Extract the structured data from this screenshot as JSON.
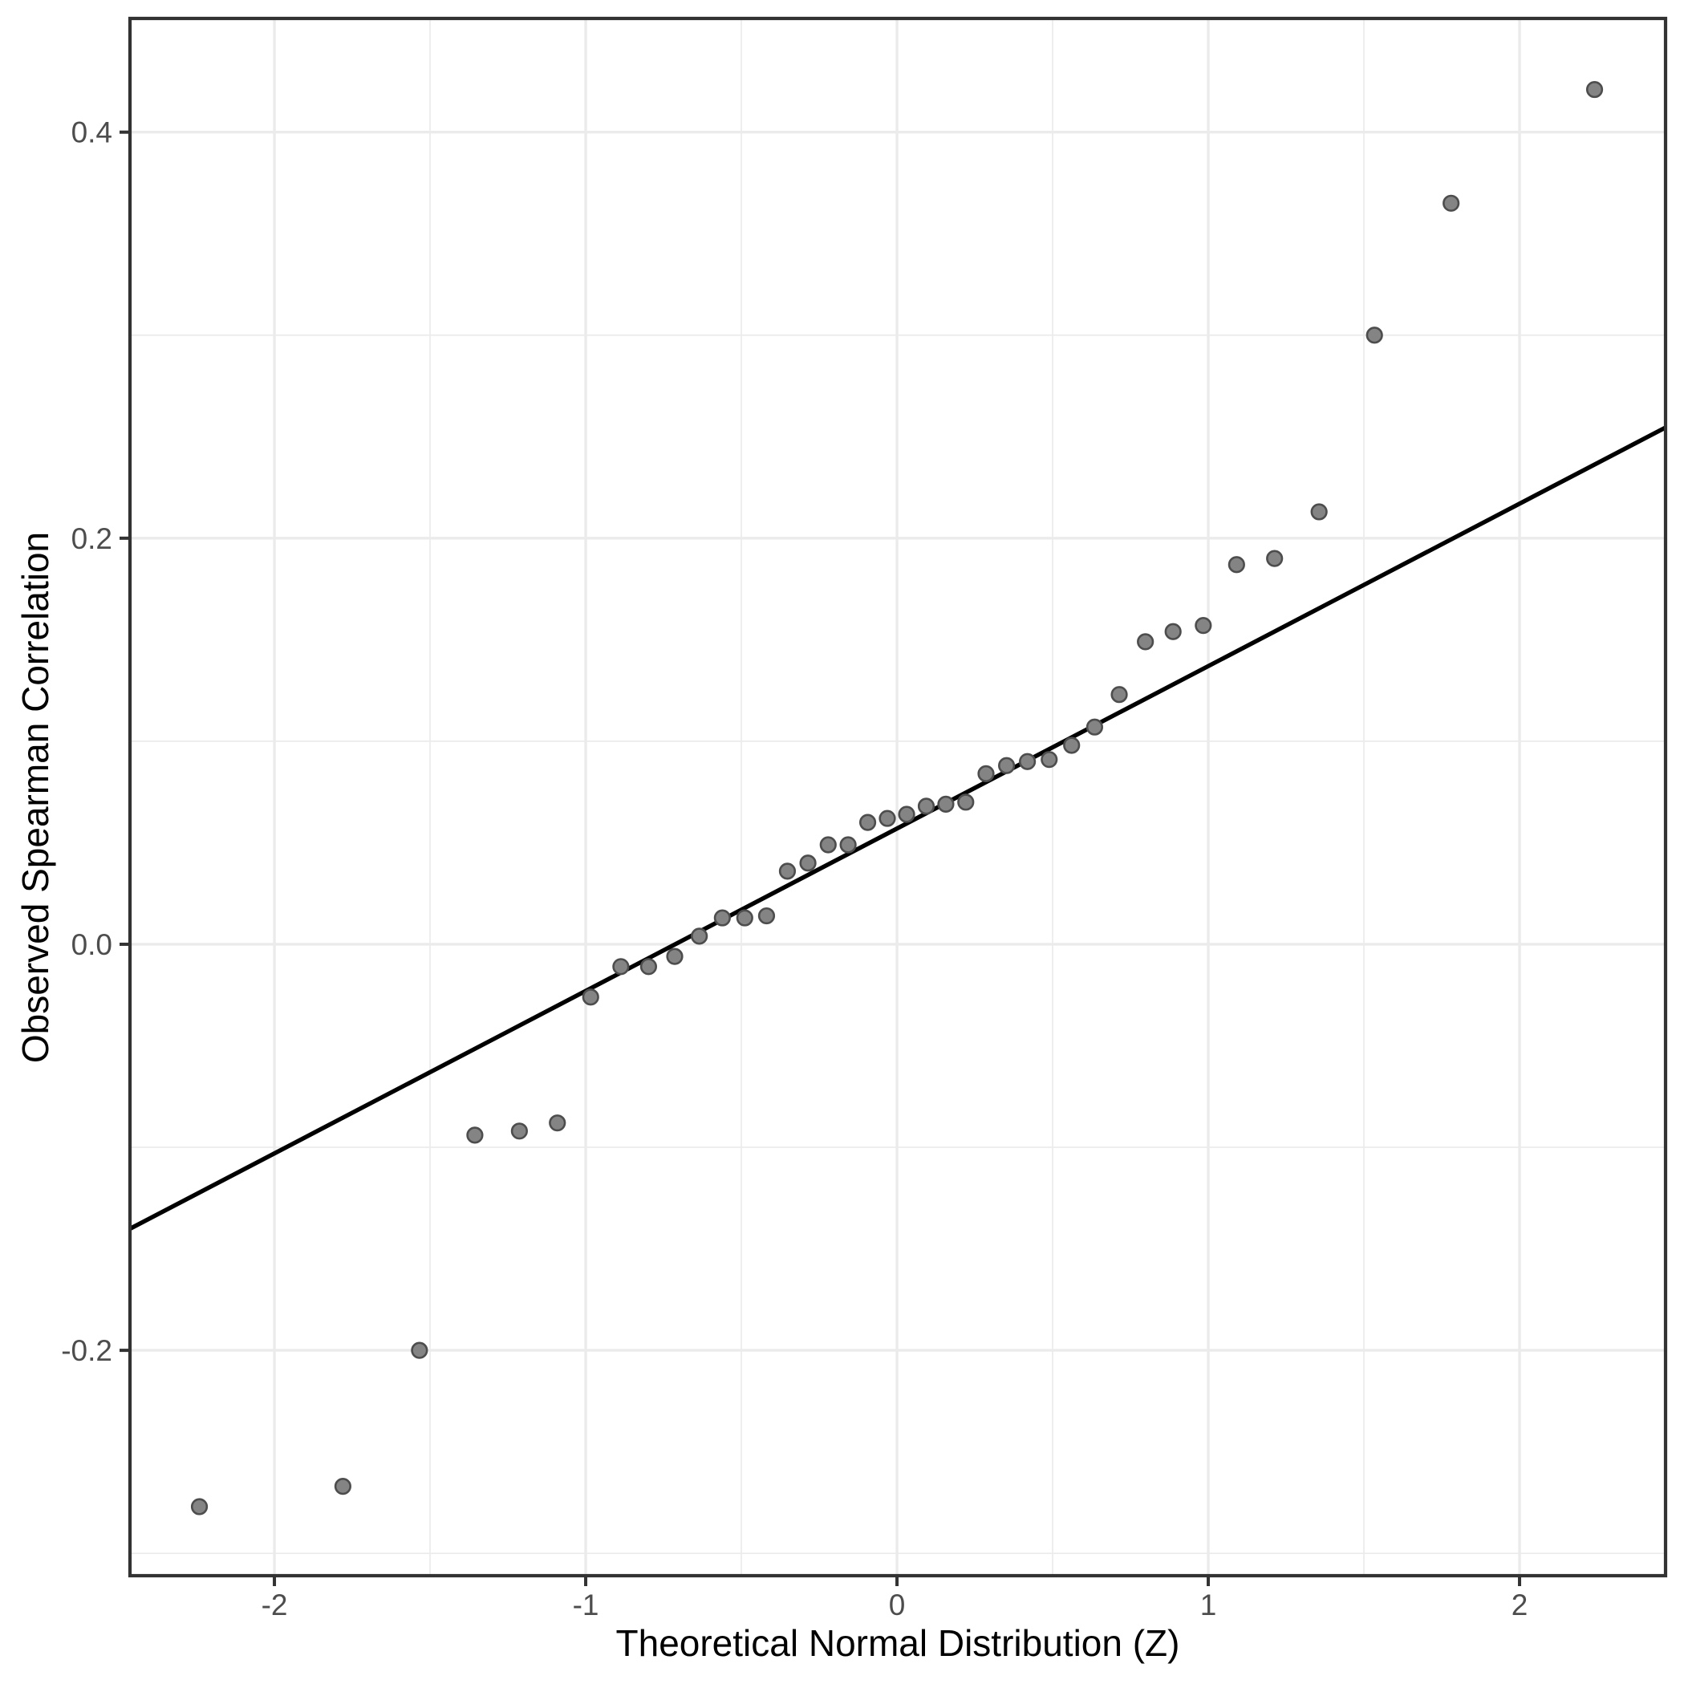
{
  "chart_data": {
    "type": "scatter",
    "title": "",
    "xlabel": "Theoretical Normal Distribution (Z)",
    "ylabel": "Observed Spearman Correlation",
    "xlim": [
      -2.464,
      2.469
    ],
    "ylim": [
      -0.311,
      0.456
    ],
    "x_major_ticks": [
      -2,
      -1,
      0,
      1,
      2
    ],
    "x_tick_labels": [
      "-2",
      "-1",
      "0",
      "1",
      "2"
    ],
    "x_minor_ticks": [
      -1.5,
      -0.5,
      0.5,
      1.5
    ],
    "y_major_ticks": [
      0.4,
      0.2,
      0.0,
      -0.2
    ],
    "y_tick_labels": [
      "0.4",
      "0.2",
      "0.0",
      "-0.2"
    ],
    "y_minor_ticks": [
      0.3,
      0.1,
      -0.1,
      -0.3
    ],
    "grid": "major+minor",
    "legend": "none",
    "series": [
      {
        "name": "observed-spearman-vs-normal-quantiles",
        "points": [
          [
            -2.241,
            -0.277
          ],
          [
            -1.78,
            -0.267
          ],
          [
            -1.534,
            -0.2
          ],
          [
            -1.356,
            -0.094
          ],
          [
            -1.213,
            -0.092
          ],
          [
            -1.091,
            -0.088
          ],
          [
            -0.984,
            -0.026
          ],
          [
            -0.887,
            -0.011
          ],
          [
            -0.798,
            -0.011
          ],
          [
            -0.714,
            -0.006
          ],
          [
            -0.635,
            0.004
          ],
          [
            -0.561,
            0.013
          ],
          [
            -0.489,
            0.013
          ],
          [
            -0.419,
            0.014
          ],
          [
            -0.352,
            0.036
          ],
          [
            -0.286,
            0.04
          ],
          [
            -0.221,
            0.049
          ],
          [
            -0.157,
            0.049
          ],
          [
            -0.094,
            0.06
          ],
          [
            -0.031,
            0.062
          ],
          [
            0.031,
            0.064
          ],
          [
            0.094,
            0.068
          ],
          [
            0.157,
            0.069
          ],
          [
            0.221,
            0.07
          ],
          [
            0.286,
            0.084
          ],
          [
            0.352,
            0.088
          ],
          [
            0.419,
            0.09
          ],
          [
            0.489,
            0.091
          ],
          [
            0.561,
            0.098
          ],
          [
            0.635,
            0.107
          ],
          [
            0.714,
            0.123
          ],
          [
            0.798,
            0.149
          ],
          [
            0.887,
            0.154
          ],
          [
            0.984,
            0.157
          ],
          [
            1.091,
            0.187
          ],
          [
            1.213,
            0.19
          ],
          [
            1.356,
            0.213
          ],
          [
            1.534,
            0.3
          ],
          [
            1.78,
            0.365
          ],
          [
            2.241,
            0.421
          ]
        ]
      }
    ],
    "reference_line": {
      "slope": 0.08,
      "intercept": 0.057,
      "x_start": -2.464,
      "x_end": 2.469
    }
  },
  "colors": {
    "background": "#FFFFFF",
    "panel_background": "#FFFFFF",
    "panel_border": "#333333",
    "grid_major": "#EBEBEB",
    "grid_minor": "#EBEBEB",
    "reference_line": "#000000",
    "point_fill": "#848484",
    "point_stroke": "#4D4D4D",
    "tick_mark": "#333333",
    "tick_label": "#4D4D4D",
    "axis_title": "#000000"
  }
}
